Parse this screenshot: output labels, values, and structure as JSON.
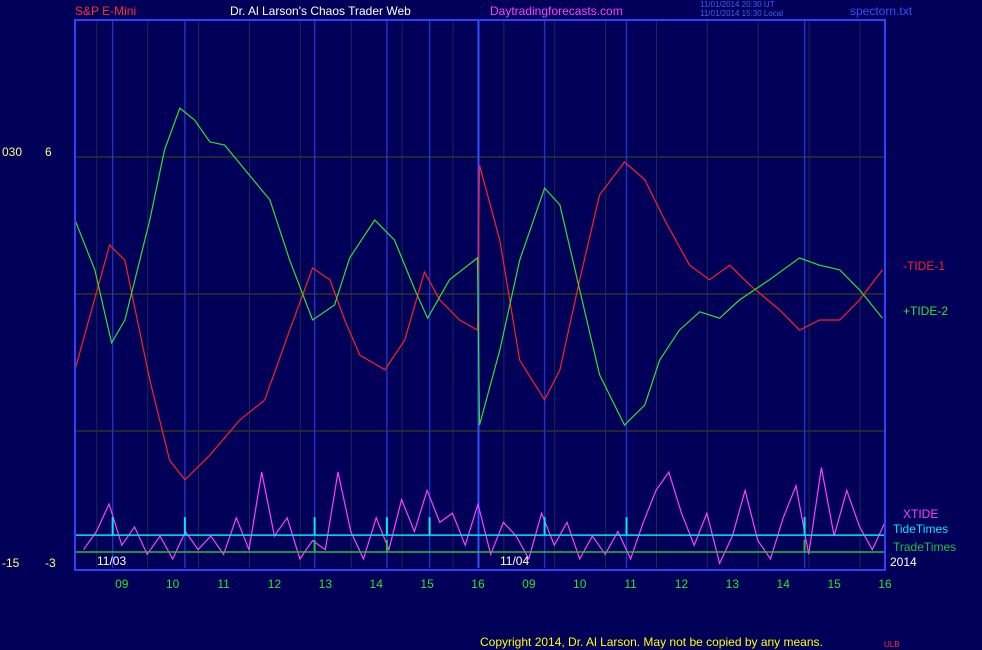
{
  "header": {
    "symbol": "S&P E-Mini",
    "site_title": "Dr. Al Larson's Chaos Trader Web",
    "url": "Daytradingforecasts.com",
    "time_ut": "11/01/2014 20:30 UT",
    "time_local": "11/01/2014 15:30 Local",
    "file": "spectorn.txt"
  },
  "footer": {
    "copyright": "Copyright 2014, Dr. Al Larson. May not be copied by any means.",
    "mark": "ULB"
  },
  "chart_data": {
    "type": "line",
    "xlim": [
      -0.92,
      15.0
    ],
    "xticks": [
      {
        "value": 0,
        "label": "09"
      },
      {
        "value": 1,
        "label": "10"
      },
      {
        "value": 2,
        "label": "11"
      },
      {
        "value": 3,
        "label": "12"
      },
      {
        "value": 4,
        "label": "13"
      },
      {
        "value": 5,
        "label": "14"
      },
      {
        "value": 6,
        "label": "15"
      },
      {
        "value": 7,
        "label": "16"
      },
      {
        "value": 8,
        "label": "09"
      },
      {
        "value": 9,
        "label": "10"
      },
      {
        "value": 10,
        "label": "11"
      },
      {
        "value": 11,
        "label": "12"
      },
      {
        "value": 12,
        "label": "13"
      },
      {
        "value": 13,
        "label": "14"
      },
      {
        "value": 14,
        "label": "15"
      },
      {
        "value": 15,
        "label": "16"
      }
    ],
    "ylim": [
      -3,
      9
    ],
    "yticks": [
      6,
      -3
    ],
    "ygrid": [
      6,
      3,
      0
    ],
    "y2lim": [
      -15,
      45
    ],
    "y2ticks": [
      {
        "value": 30,
        "label": "030"
      },
      -15
    ],
    "date_labels": [
      "11/03",
      "11/04"
    ],
    "year_label": "2014",
    "day_breaks": [
      7.01
    ],
    "series": [
      {
        "name": "-TIDE-1",
        "color": "#ff2020",
        "x": [
          -0.92,
          -0.24,
          0.06,
          0.55,
          0.94,
          1.24,
          1.73,
          2.32,
          2.81,
          3.3,
          3.75,
          4.09,
          4.38,
          4.68,
          5.17,
          5.56,
          5.95,
          6.25,
          6.64,
          6.99,
          7.03,
          7.43,
          7.82,
          8.31,
          8.61,
          9.0,
          9.39,
          9.88,
          10.28,
          10.67,
          11.16,
          11.55,
          11.95,
          12.34,
          12.93,
          13.32,
          13.71,
          14.11,
          14.5,
          14.95
        ],
        "values": [
          1.34,
          4.07,
          3.74,
          1.12,
          -0.64,
          -1.07,
          -0.53,
          0.24,
          0.68,
          2.21,
          3.57,
          3.31,
          2.43,
          1.66,
          1.34,
          1.99,
          3.48,
          2.87,
          2.43,
          2.21,
          5.82,
          4.18,
          1.55,
          0.68,
          1.34,
          3.31,
          5.17,
          5.89,
          5.5,
          4.62,
          3.63,
          3.31,
          3.63,
          3.2,
          2.65,
          2.21,
          2.43,
          2.43,
          2.87,
          3.53
        ]
      },
      {
        "name": "+TIDE-2",
        "color": "#30e030",
        "x": [
          -0.92,
          -0.53,
          -0.2,
          0.06,
          0.55,
          0.84,
          1.14,
          1.43,
          1.73,
          2.02,
          2.51,
          2.91,
          3.3,
          3.75,
          4.18,
          4.48,
          4.97,
          5.36,
          5.76,
          6.01,
          6.44,
          6.99,
          7.03,
          7.43,
          7.82,
          8.31,
          8.61,
          9.0,
          9.39,
          9.88,
          10.28,
          10.57,
          10.96,
          11.36,
          11.75,
          12.14,
          12.73,
          13.32,
          13.71,
          14.11,
          14.5,
          14.95
        ],
        "values": [
          4.62,
          3.53,
          1.93,
          2.43,
          4.62,
          6.15,
          7.07,
          6.81,
          6.33,
          6.26,
          5.6,
          5.06,
          3.74,
          2.43,
          2.76,
          3.79,
          4.62,
          4.18,
          3.09,
          2.47,
          3.31,
          3.79,
          0.13,
          1.77,
          3.74,
          5.32,
          4.95,
          3.09,
          1.23,
          0.13,
          0.57,
          1.55,
          2.21,
          2.61,
          2.47,
          2.87,
          3.31,
          3.79,
          3.63,
          3.53,
          3.09,
          2.47
        ]
      },
      {
        "name": "XTIDE",
        "color": "#ff40ff",
        "x": [
          -0.75,
          -0.5,
          -0.25,
          0,
          0.25,
          0.5,
          0.75,
          1,
          1.25,
          1.5,
          1.75,
          2,
          2.25,
          2.5,
          2.75,
          3,
          3.25,
          3.5,
          3.75,
          4,
          4.25,
          4.5,
          4.75,
          5,
          5.25,
          5.5,
          5.75,
          6,
          6.25,
          6.5,
          6.75,
          7,
          7.25,
          7.5,
          7.75,
          8,
          8.25,
          8.5,
          8.75,
          9,
          9.25,
          9.5,
          9.75,
          10,
          10.25,
          10.5,
          10.75,
          11,
          11.25,
          11.5,
          11.75,
          12,
          12.25,
          12.5,
          12.75,
          13,
          13.25,
          13.5,
          13.75,
          14,
          14.25,
          14.5,
          14.75,
          15
        ],
        "values": [
          -2.6,
          -2.2,
          -1.6,
          -2.5,
          -2.1,
          -2.7,
          -2.3,
          -2.8,
          -2.2,
          -2.6,
          -2.3,
          -2.7,
          -1.9,
          -2.6,
          -0.9,
          -2.3,
          -1.9,
          -2.8,
          -2.4,
          -2.6,
          -0.9,
          -2.2,
          -2.8,
          -1.9,
          -2.6,
          -1.5,
          -2.2,
          -1.3,
          -2.0,
          -1.8,
          -2.5,
          -1.6,
          -2.7,
          -2.0,
          -2.3,
          -2.8,
          -1.8,
          -2.5,
          -2.0,
          -2.8,
          -2.3,
          -2.7,
          -2.2,
          -2.8,
          -2.0,
          -1.3,
          -0.9,
          -1.8,
          -2.5,
          -1.8,
          -2.9,
          -2.3,
          -1.3,
          -2.4,
          -2.8,
          -1.9,
          -1.2,
          -2.7,
          -0.8,
          -2.3,
          -1.3,
          -2.1,
          -2.6,
          -2.0
        ]
      },
      {
        "name": "TideTimes",
        "color": "#00e8ff",
        "level": -2.28,
        "events": [
          -0.18,
          1.24,
          3.79,
          5.21,
          6.05,
          8.31,
          9.92,
          13.42
        ]
      },
      {
        "name": "TradeTimes",
        "color": "#20c040",
        "level": -2.65,
        "events": [
          3.79,
          5.21,
          13.42
        ]
      }
    ]
  }
}
